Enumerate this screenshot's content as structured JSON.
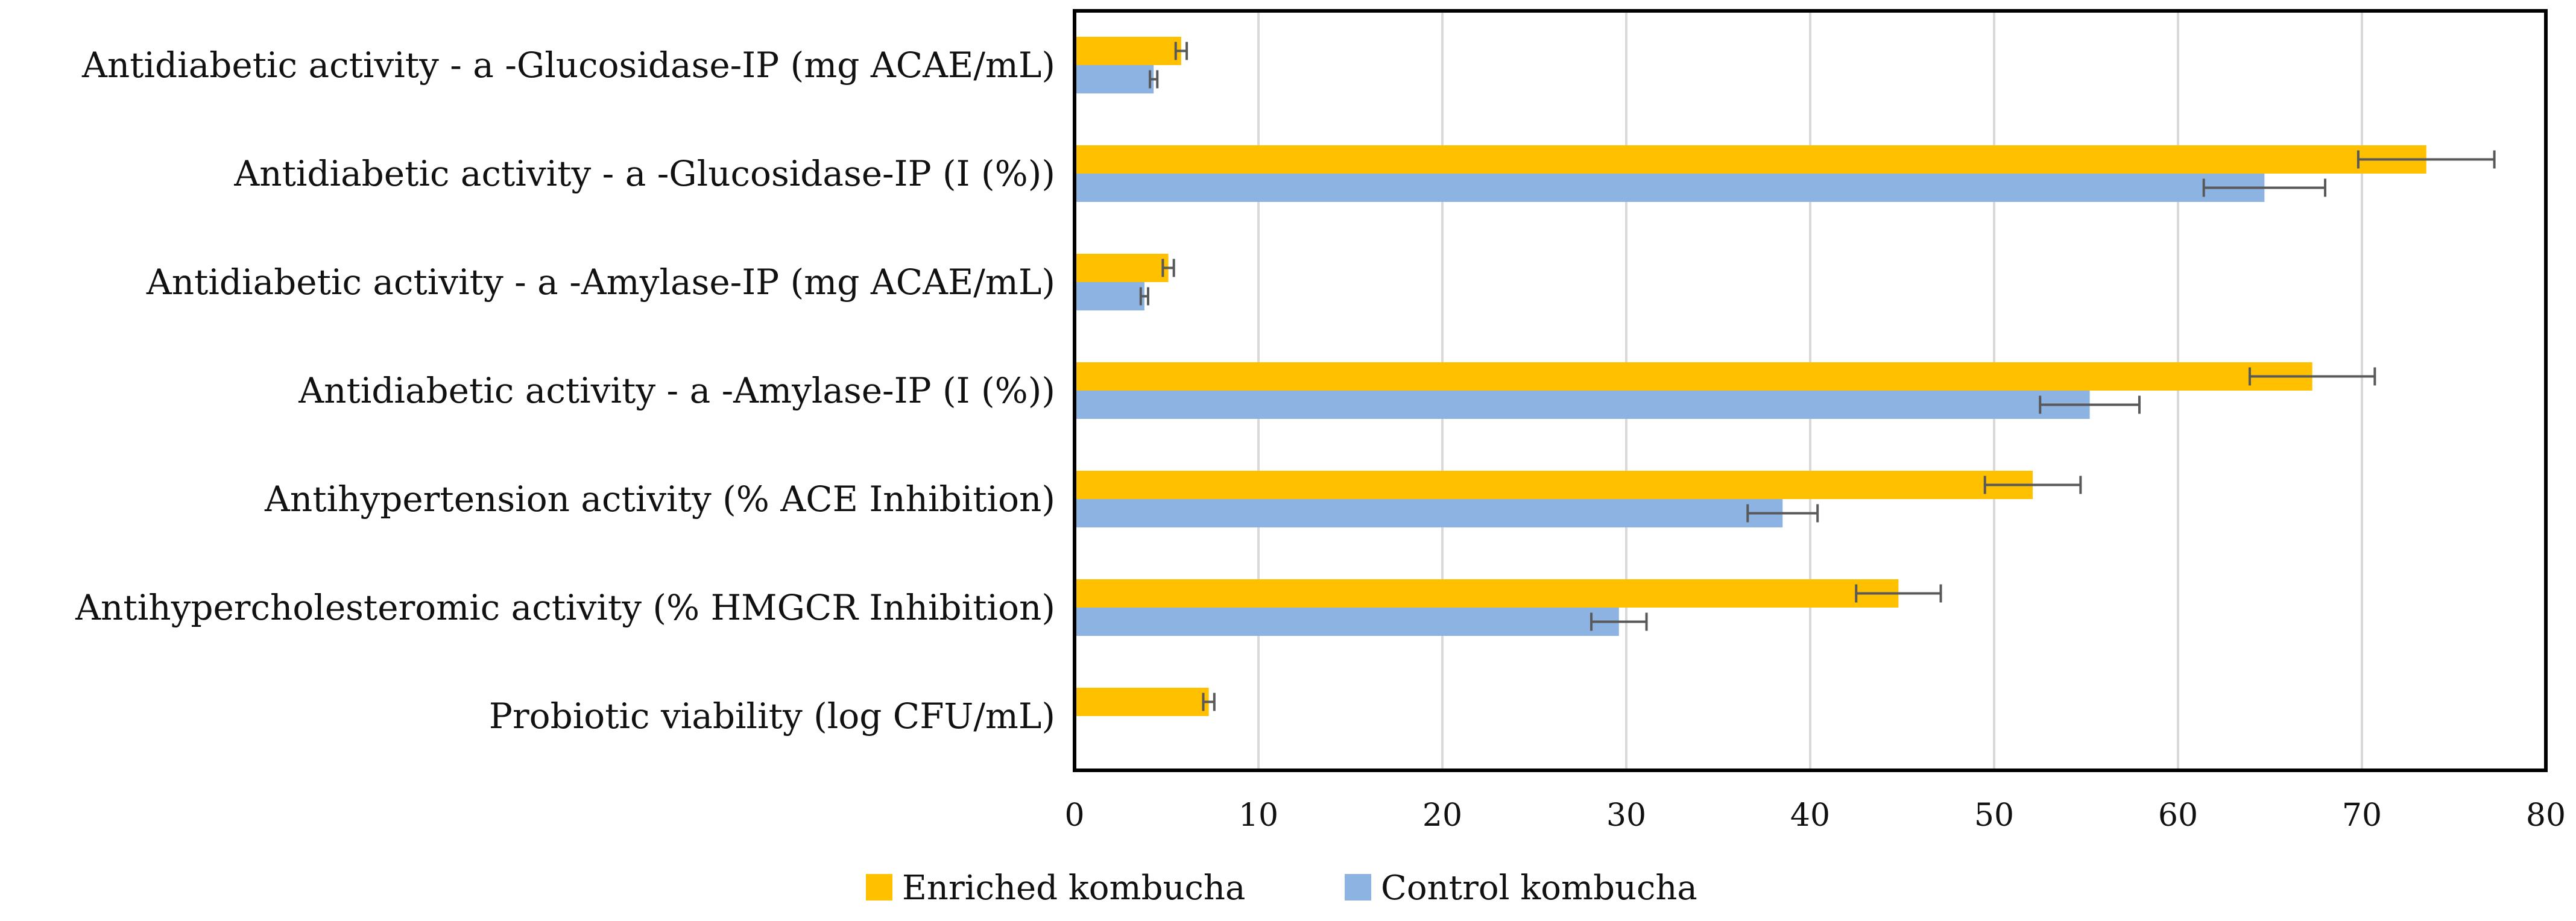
{
  "chart_data": {
    "type": "bar",
    "orientation": "horizontal",
    "title": "",
    "xlabel": "",
    "ylabel": "",
    "xlim": [
      0,
      80
    ],
    "x_ticks": [
      0,
      10,
      20,
      30,
      40,
      50,
      60,
      70,
      80
    ],
    "grid": "vertical",
    "legend_position": "bottom",
    "categories": [
      "Antidiabetic activity - a -Glucosidase-IP (mg ACAE/mL)",
      "Antidiabetic activity - a -Glucosidase-IP (I (%))",
      "Antidiabetic activity - a -Amylase-IP (mg ACAE/mL)",
      "Antidiabetic activity - a -Amylase-IP (I (%))",
      "Antihypertension activity (% ACE Inhibition)",
      "Antihypercholesteromic activity (% HMGCR Inhibition)",
      "Probiotic viability (log CFU/mL)"
    ],
    "series": [
      {
        "name": "Enriched kombucha",
        "color": "#ffc000",
        "values": [
          5.8,
          73.5,
          5.1,
          67.3,
          52.1,
          44.8,
          7.3
        ],
        "errors": [
          0.3,
          3.7,
          0.3,
          3.4,
          2.6,
          2.3,
          0.3
        ]
      },
      {
        "name": "Control kombucha",
        "color": "#8db3e2",
        "values": [
          4.3,
          64.7,
          3.8,
          55.2,
          38.5,
          29.6,
          null
        ],
        "errors": [
          0.2,
          3.3,
          0.2,
          2.7,
          1.9,
          1.5,
          null
        ]
      }
    ]
  }
}
